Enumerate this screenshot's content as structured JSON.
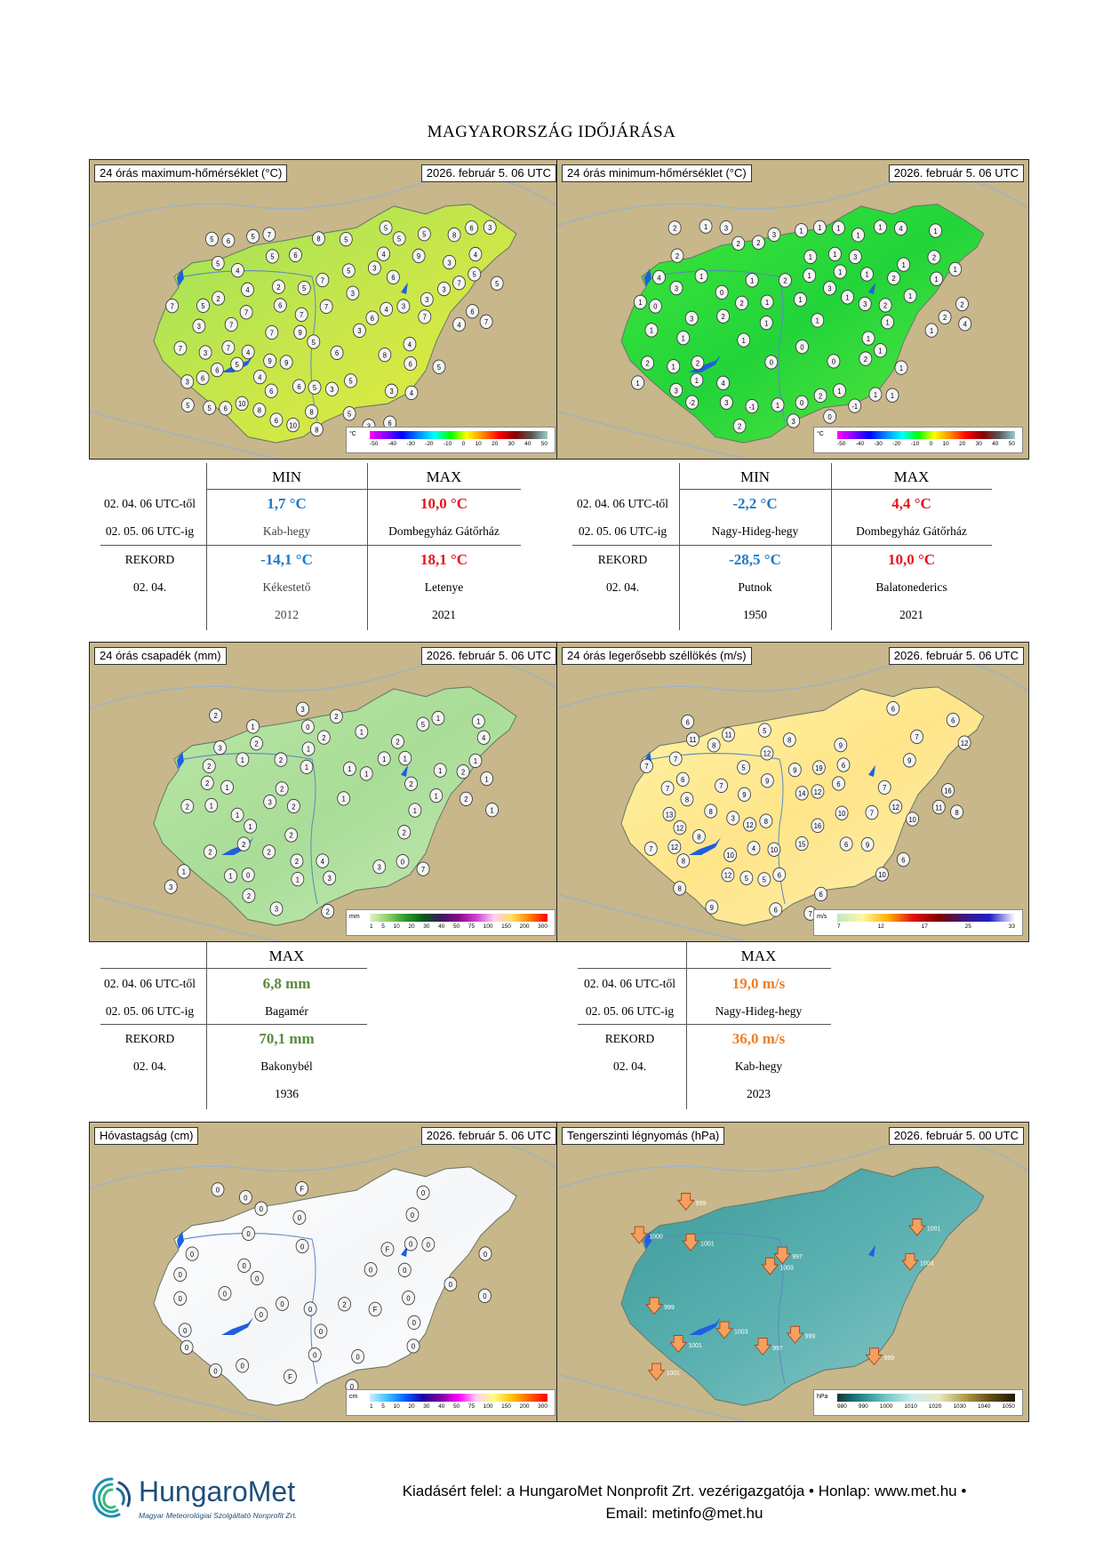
{
  "page_title": "MAGYARORSZÁG IDŐJÁRÁSA",
  "maps": {
    "max_temp": {
      "title": "24 órás maximum-hőmérséklet (°C)",
      "date": "2026. február 5. 06 UTC",
      "unit": "°C",
      "ticks": [
        "-50",
        "-40",
        "-30",
        "-20",
        "-10",
        "0",
        "10",
        "20",
        "30",
        "40",
        "50"
      ]
    },
    "min_temp": {
      "title": "24 órás minimum-hőmérséklet (°C)",
      "date": "2026. február 5. 06 UTC",
      "unit": "°C",
      "ticks": [
        "-50",
        "-40",
        "-30",
        "-20",
        "-10",
        "0",
        "10",
        "20",
        "30",
        "40",
        "50"
      ]
    },
    "precip": {
      "title": "24 órás csapadék (mm)",
      "date": "2026. február 5. 06 UTC",
      "unit": "mm",
      "ticks": [
        "1",
        "5",
        "10",
        "20",
        "30",
        "40",
        "50",
        "75",
        "100",
        "150",
        "200",
        "300"
      ]
    },
    "wind": {
      "title": "24 órás legerősebb széllökés (m/s)",
      "date": "2026. február 5. 06 UTC",
      "unit": "m/s",
      "ticks": [
        "7",
        "12",
        "17",
        "25",
        "33"
      ]
    },
    "snow": {
      "title": "Hóvastagság (cm)",
      "date": "2026. február 5. 06 UTC",
      "unit": "cm",
      "ticks": [
        "1",
        "5",
        "10",
        "20",
        "30",
        "40",
        "50",
        "75",
        "100",
        "150",
        "200",
        "300"
      ]
    },
    "pressure": {
      "title": "Tengerszinti légnyomás (hPa)",
      "date": "2026. február 5. 00 UTC",
      "unit": "hPa",
      "ticks": [
        "980",
        "990",
        "1000",
        "1010",
        "1020",
        "1030",
        "1040",
        "1050"
      ]
    }
  },
  "tables": {
    "max_temp": {
      "min_head": "MIN",
      "max_head": "MAX",
      "period_from": "02. 04. 06 UTC-től",
      "period_to": "02. 05. 06 UTC-ig",
      "min_value": "1,7 °C",
      "min_station": "Kab-hegy",
      "max_value": "10,0 °C",
      "max_station": "Dombegyház Gátőrház",
      "record_label": "REKORD",
      "record_date": "02. 04.",
      "rec_min_value": "-14,1 °C",
      "rec_min_station": "Kékestető",
      "rec_min_year": "2012",
      "rec_max_value": "18,1 °C",
      "rec_max_station": "Letenye",
      "rec_max_year": "2021"
    },
    "min_temp": {
      "min_head": "MIN",
      "max_head": "MAX",
      "period_from": "02. 04. 06 UTC-től",
      "period_to": "02. 05. 06 UTC-ig",
      "min_value": "-2,2 °C",
      "min_station": "Nagy-Hideg-hegy",
      "max_value": "4,4 °C",
      "max_station": "Dombegyház Gátőrház",
      "record_label": "REKORD",
      "record_date": "02. 04.",
      "rec_min_value": "-28,5 °C",
      "rec_min_station": "Putnok",
      "rec_min_year": "1950",
      "rec_max_value": "10,0 °C",
      "rec_max_station": "Balatonederics",
      "rec_max_year": "2021"
    },
    "precip": {
      "max_head": "MAX",
      "period_from": "02. 04. 06 UTC-től",
      "period_to": "02. 05. 06 UTC-ig",
      "max_value": "6,8 mm",
      "max_station": "Bagamér",
      "record_label": "REKORD",
      "record_date": "02. 04.",
      "rec_max_value": "70,1 mm",
      "rec_max_station": "Bakonybél",
      "rec_max_year": "1936"
    },
    "wind": {
      "max_head": "MAX",
      "period_from": "02. 04. 06 UTC-től",
      "period_to": "02. 05. 06 UTC-ig",
      "max_value": "19,0 m/s",
      "max_station": "Nagy-Hideg-hegy",
      "record_label": "REKORD",
      "record_date": "02. 04.",
      "rec_max_value": "36,0 m/s",
      "rec_max_station": "Kab-hegy",
      "rec_max_year": "2023"
    }
  },
  "station_values": {
    "max_temp": [
      "4",
      "5",
      "5",
      "5",
      "6",
      "5",
      "2",
      "3",
      "3",
      "6",
      "6",
      "6",
      "3",
      "5",
      "3",
      "8",
      "6",
      "5",
      "7",
      "5",
      "3",
      "7",
      "4",
      "5",
      "6",
      "7",
      "3",
      "6",
      "4",
      "5",
      "4",
      "3",
      "5",
      "4",
      "5",
      "6",
      "6",
      "6",
      "5",
      "3",
      "3",
      "5",
      "2",
      "5",
      "3",
      "7",
      "7",
      "6",
      "3",
      "3",
      "5",
      "4",
      "3",
      "5",
      "5",
      "6",
      "7",
      "7",
      "8",
      "4",
      "5",
      "3",
      "4",
      "5",
      "7",
      "7",
      "10",
      "4",
      "4",
      "6",
      "5",
      "7",
      "7",
      "7",
      "8",
      "9",
      "10",
      "6",
      "5",
      "6",
      "8",
      "8",
      "9",
      "9",
      "9",
      "7",
      "6",
      "8"
    ],
    "min_temp": [
      "0",
      "0",
      "1",
      "1",
      "1",
      "1",
      "2",
      "1",
      "-2",
      "1",
      "1",
      "0",
      "1",
      "1",
      "2",
      "2",
      "1",
      "1",
      "-1",
      "1",
      "1",
      "2",
      "2",
      "0",
      "1",
      "1",
      "1",
      "1",
      "2",
      "1",
      "0",
      "0",
      "1",
      "1",
      "1",
      "1",
      "1",
      "3",
      "3",
      "1",
      "-1",
      "0",
      "1",
      "1",
      "1",
      "3",
      "4",
      "1",
      "1",
      "1",
      "1",
      "1",
      "1",
      "2",
      "2",
      "3",
      "3",
      "1",
      "1",
      "1",
      "1",
      "2",
      "1",
      "3",
      "3",
      "4",
      "2",
      "1",
      "2",
      "2",
      "2",
      "2",
      "3",
      "4",
      "4",
      "3",
      "2",
      "2",
      "2",
      "3"
    ],
    "precip": [
      "4",
      "1",
      "2",
      "2",
      "0",
      "3",
      "1",
      "2",
      "3",
      "2",
      "1",
      "1",
      "2",
      "2",
      "4",
      "5",
      "3",
      "2",
      "1",
      "2",
      "2",
      "2",
      "3",
      "1",
      "1",
      "3",
      "3",
      "7",
      "2",
      "1",
      "1",
      "1",
      "2",
      "2",
      "1",
      "2",
      "1",
      "1",
      "2",
      "2",
      "1",
      "1",
      "2",
      "1",
      "1",
      "2",
      "3",
      "2",
      "1",
      "1",
      "1",
      "1",
      "2",
      "1",
      "0",
      "1",
      "0",
      "1",
      "2",
      "2",
      "1"
    ],
    "wind": [
      "5",
      "5",
      "9",
      "6",
      "6",
      "4",
      "3",
      "11",
      "5",
      "7",
      "8",
      "12",
      "10",
      "8",
      "6",
      "19",
      "16",
      "6",
      "11",
      "16",
      "12",
      "7",
      "6",
      "8",
      "14",
      "10",
      "8",
      "9",
      "8",
      "8",
      "7",
      "5",
      "8",
      "8",
      "15",
      "7",
      "9",
      "7",
      "6",
      "11",
      "8",
      "9",
      "7",
      "6",
      "6",
      "12",
      "9",
      "10",
      "6",
      "9",
      "12",
      "12",
      "12",
      "6",
      "9",
      "7",
      "13",
      "10",
      "12",
      "12",
      "7",
      "10",
      "7",
      "6"
    ],
    "snow": [
      "0",
      "0",
      "2",
      "0",
      "0",
      "0",
      "0",
      "0",
      "0",
      "F",
      "0",
      "0",
      "0",
      "0",
      "F",
      "F",
      "0",
      "0",
      "0",
      "0",
      "0",
      "0",
      "F",
      "0",
      "0",
      "0",
      "0",
      "0",
      "0",
      "0",
      "0",
      "0",
      "0",
      "0",
      "0",
      "0",
      "0",
      "0",
      "0",
      "0"
    ],
    "pressure": [
      "999",
      "999",
      "1001",
      "1004",
      "1003",
      "1001",
      "1003",
      "1001",
      "999",
      "999",
      "997",
      "997",
      "1000",
      "1001"
    ]
  },
  "footer": {
    "line1": "Kiadásért felel: a HungaroMet Nonprofit Zrt. vezérigazgatója • Honlap: www.met.hu •",
    "line2": "Email: metinfo@met.hu",
    "logo_name": "HungaroMet",
    "logo_sub": "Magyar Meteorológiai Szolgáltató Nonprofit Zrt."
  }
}
